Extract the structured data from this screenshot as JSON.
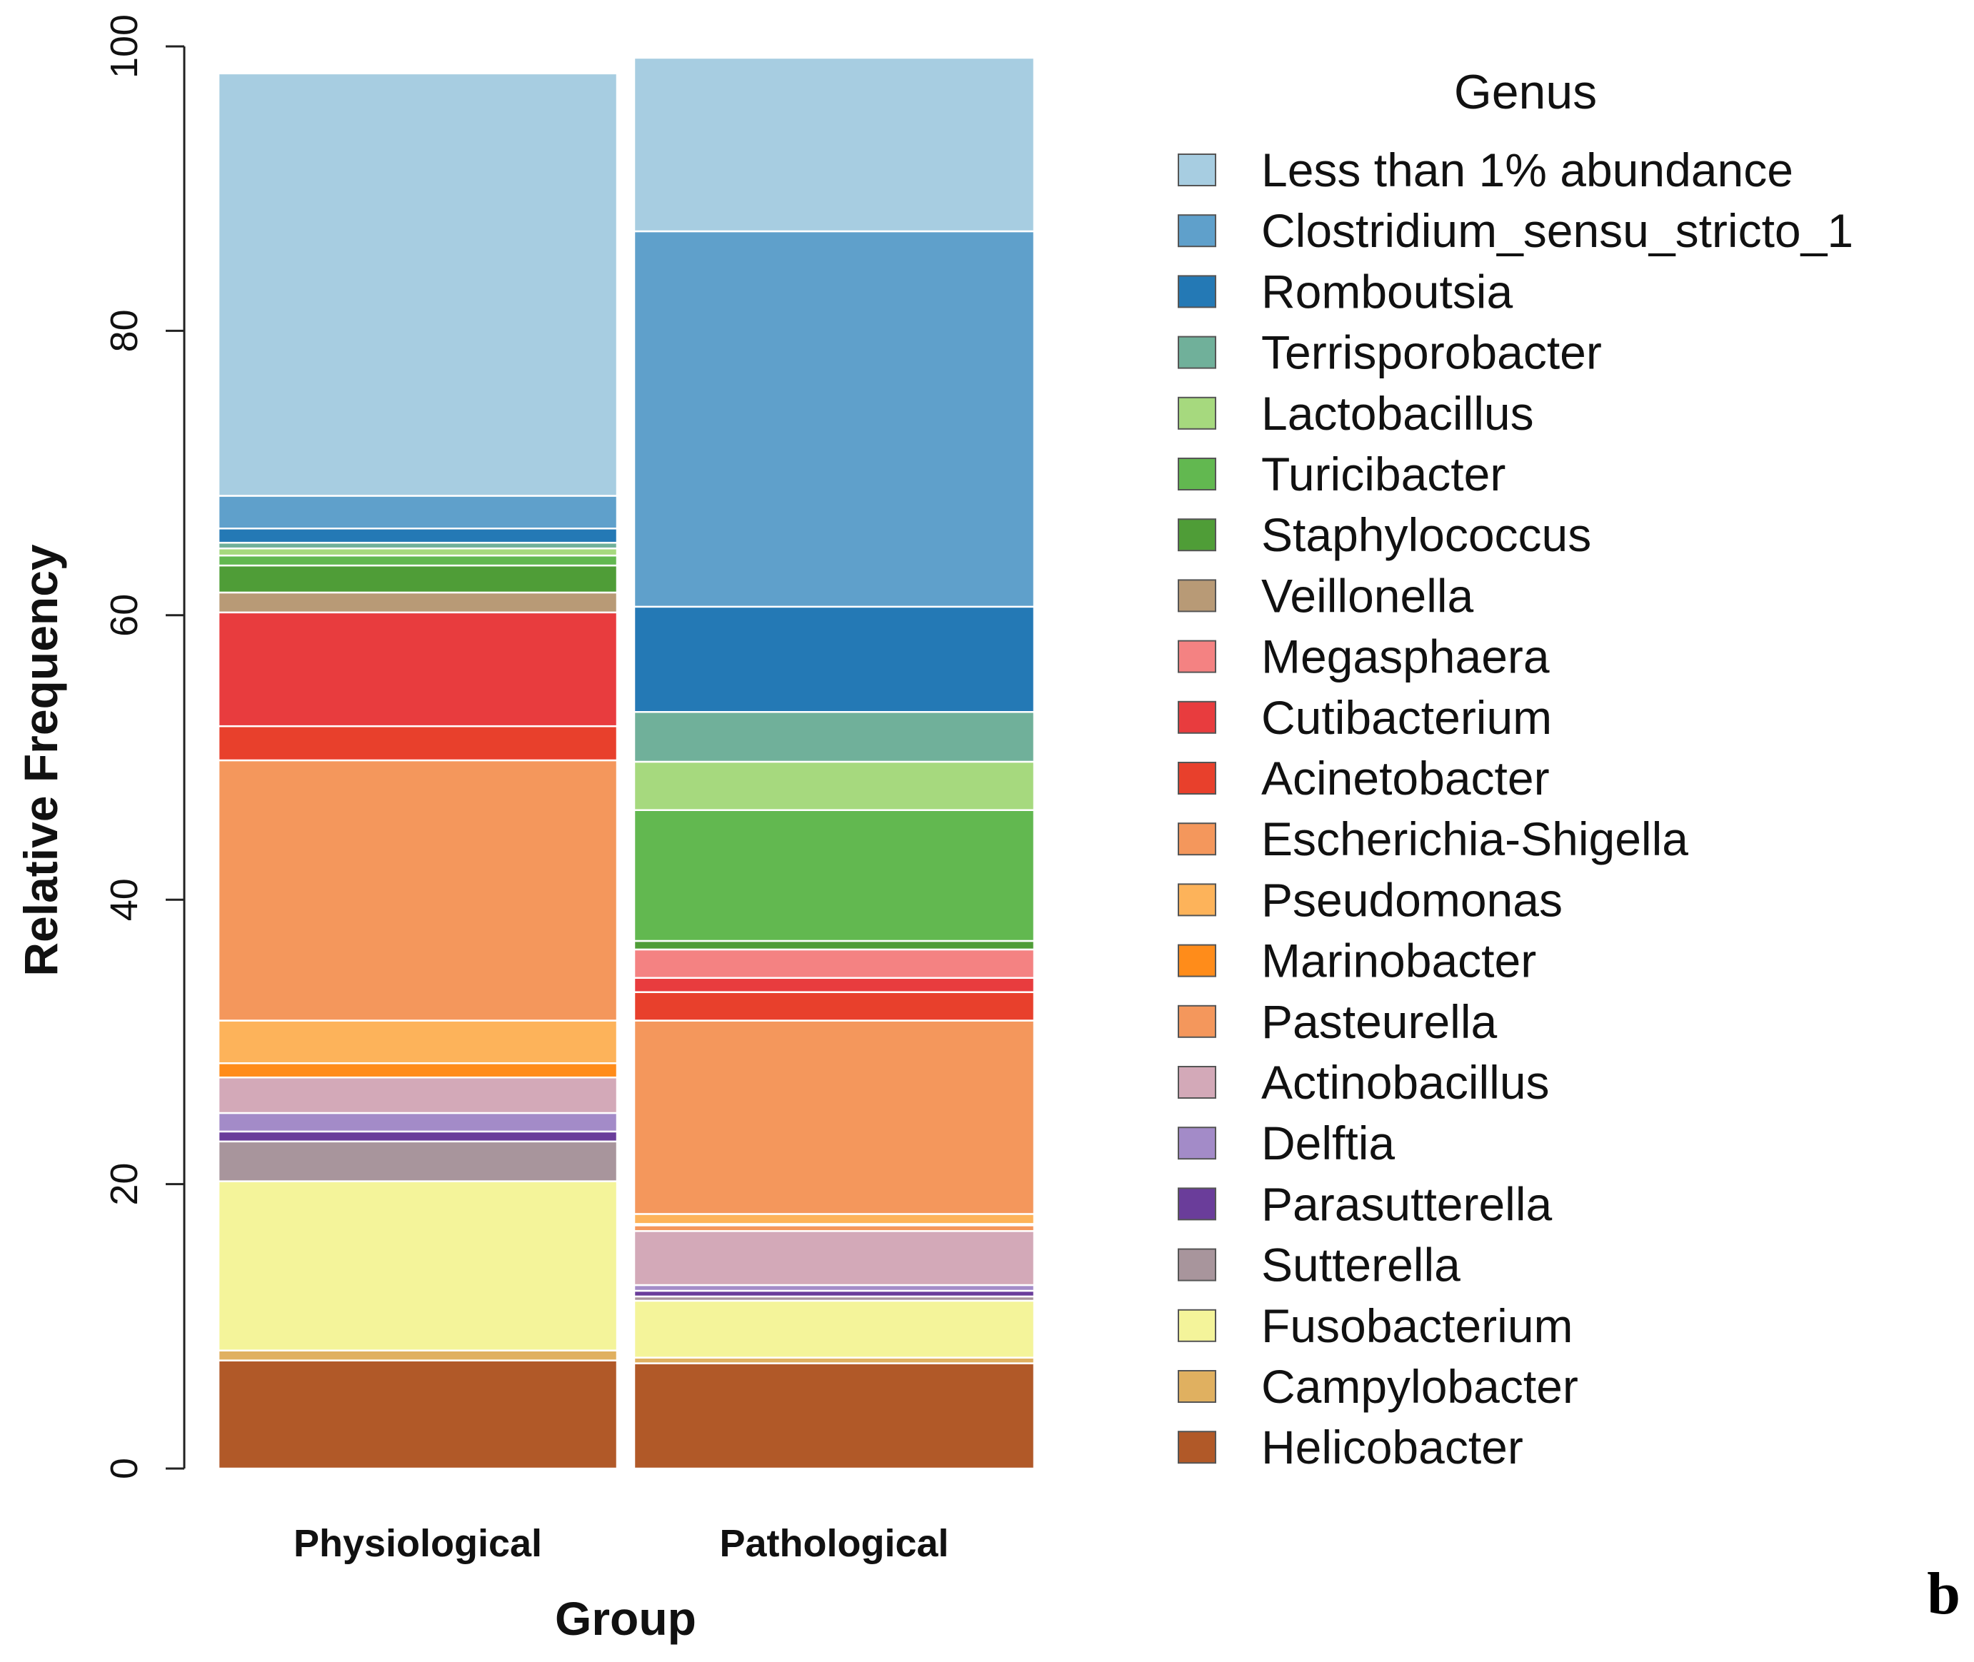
{
  "chart_data": {
    "type": "bar",
    "stacked": true,
    "panel_label": "b",
    "xlabel": "Group",
    "ylabel": "Relative Frequency",
    "ylim": [
      0,
      100
    ],
    "yticks": [
      "0",
      "20",
      "40",
      "60",
      "80",
      "100"
    ],
    "legend_title": "Genus",
    "legend_position": "right",
    "categories": [
      "Physiological",
      "Pathological"
    ],
    "series": [
      {
        "name": "Helicobacter",
        "color": "#b15928",
        "values": [
          7.6,
          7.4
        ]
      },
      {
        "name": "Campylobacter",
        "color": "#e0b060",
        "values": [
          0.7,
          0.4
        ]
      },
      {
        "name": "Fusobacterium",
        "color": "#f4f49a",
        "values": [
          11.9,
          4.0
        ]
      },
      {
        "name": "Sutterella",
        "color": "#a8959c",
        "values": [
          2.8,
          0.3
        ]
      },
      {
        "name": "Parasutterella",
        "color": "#6a3d9a",
        "values": [
          0.7,
          0.4
        ]
      },
      {
        "name": "Delftia",
        "color": "#a38bc8",
        "values": [
          1.3,
          0.4
        ]
      },
      {
        "name": "Actinobacillus",
        "color": "#d3a9b8",
        "values": [
          2.5,
          3.8
        ]
      },
      {
        "name": "Pasteurella",
        "color": "#f4975c",
        "values": [
          0.0,
          0.4
        ]
      },
      {
        "name": "Marinobacter",
        "color": "#ff8c1a",
        "values": [
          1.0,
          0.1
        ]
      },
      {
        "name": "Pseudomonas",
        "color": "#fdb35a",
        "values": [
          3.0,
          0.7
        ]
      },
      {
        "name": "Escherichia-Shigella",
        "color": "#f4975c",
        "values": [
          18.3,
          13.6
        ]
      },
      {
        "name": "Acinetobacter",
        "color": "#e8402c",
        "values": [
          2.4,
          2.0
        ]
      },
      {
        "name": "Cutibacterium",
        "color": "#e83c3e",
        "values": [
          8.0,
          1.0
        ]
      },
      {
        "name": "Megasphaera",
        "color": "#f48282",
        "values": [
          0.0,
          2.0
        ]
      },
      {
        "name": "Veillonella",
        "color": "#b89a76",
        "values": [
          1.4,
          0.0
        ]
      },
      {
        "name": "Staphylococcus",
        "color": "#4f9d37",
        "values": [
          1.9,
          0.6
        ]
      },
      {
        "name": "Turicibacter",
        "color": "#62b850",
        "values": [
          0.7,
          9.2
        ]
      },
      {
        "name": "Lactobacillus",
        "color": "#a6d97e",
        "values": [
          0.5,
          3.4
        ]
      },
      {
        "name": "Terrisporobacter",
        "color": "#70b09a",
        "values": [
          0.4,
          3.5
        ]
      },
      {
        "name": "Romboutsia",
        "color": "#2479b5",
        "values": [
          1.0,
          7.4
        ]
      },
      {
        "name": "Clostridium_sensu_stricto_1",
        "color": "#5fa0cb",
        "values": [
          2.3,
          26.4
        ]
      },
      {
        "name": "Less than 1% abundance",
        "color": "#a7cde1",
        "values": [
          29.7,
          12.2
        ]
      }
    ]
  }
}
